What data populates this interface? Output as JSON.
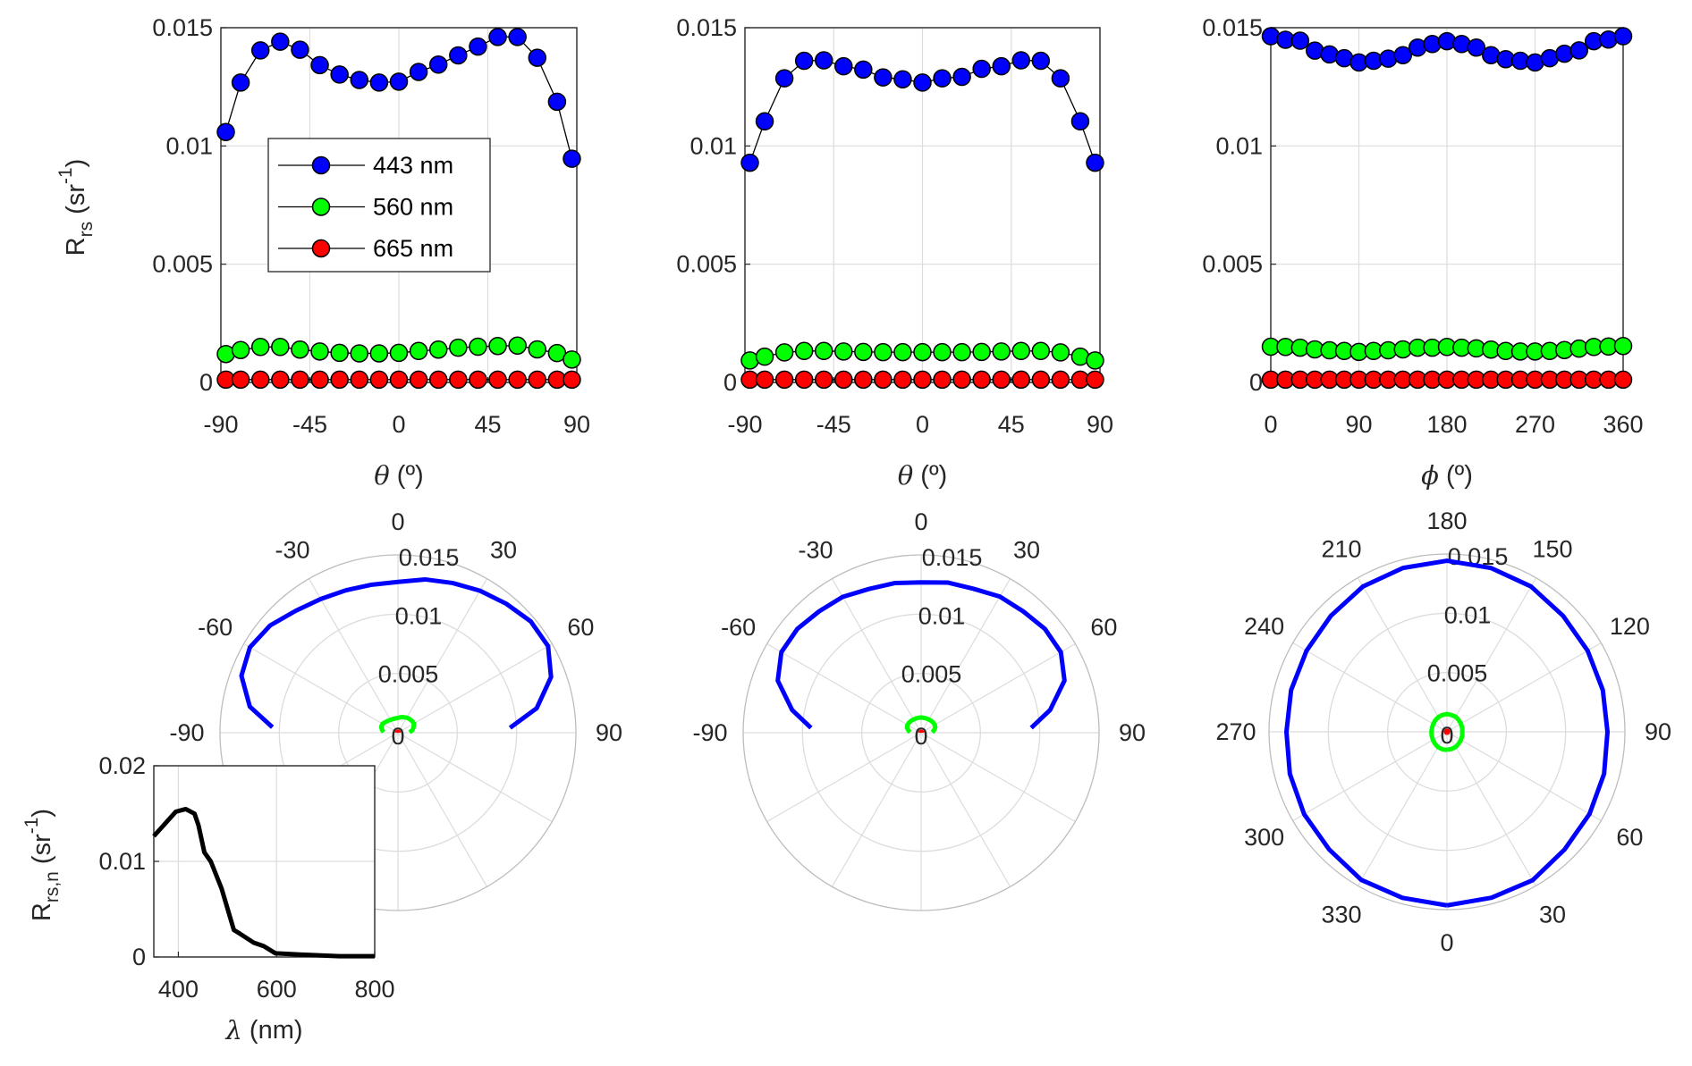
{
  "colors": {
    "443 nm": "#0000ff",
    "560 nm": "#00ff00",
    "665 nm": "#ff0000",
    "text": "#262626",
    "grid": "#dcdcdc"
  },
  "chart_data": [
    {
      "type": "line",
      "panel": "top-left",
      "xlabel": {
        "symbol": "θ",
        "unit": " (º)"
      },
      "ylabel": {
        "base": "R",
        "sub": "rs",
        "unit": " (sr",
        "sup": "-1",
        "close": ")"
      },
      "xlim": [
        -90,
        90
      ],
      "ylim": [
        0,
        0.015
      ],
      "xticks": [
        -90,
        -45,
        0,
        45,
        90
      ],
      "xtick_labels": [
        "-90",
        "-45",
        "0",
        "45",
        "90"
      ],
      "yticks": [
        0,
        0.005,
        0.01,
        0.015
      ],
      "ytick_labels": [
        "0",
        "0.005",
        "0.01",
        "0.015"
      ],
      "grid": true,
      "legend": {
        "placement": "center-left",
        "entries": [
          "443 nm",
          "560 nm",
          "665 nm"
        ]
      },
      "x": [
        -87.5,
        -80,
        -70,
        -60,
        -50,
        -40,
        -30,
        -20,
        -10,
        0,
        10,
        20,
        30,
        40,
        50,
        60,
        70,
        80,
        87.5
      ],
      "series": [
        {
          "name": "443 nm",
          "values": [
            0.01059,
            0.01268,
            0.01404,
            0.01441,
            0.01407,
            0.01342,
            0.01302,
            0.01279,
            0.01268,
            0.01272,
            0.01313,
            0.01344,
            0.01383,
            0.0142,
            0.01461,
            0.01461,
            0.01373,
            0.01187,
            0.00946
          ]
        },
        {
          "name": "560 nm",
          "values": [
            0.0012,
            0.00137,
            0.0015,
            0.0015,
            0.00139,
            0.00131,
            0.00125,
            0.00123,
            0.00123,
            0.00125,
            0.00133,
            0.00139,
            0.00147,
            0.00151,
            0.00154,
            0.00156,
            0.0014,
            0.00124,
            0.00097
          ]
        },
        {
          "name": "665 nm",
          "values": [
            0.00012,
            0.00012,
            0.00012,
            0.00012,
            0.00012,
            0.00012,
            0.00012,
            0.00012,
            0.00012,
            0.00012,
            0.00012,
            0.00012,
            0.00012,
            0.00012,
            0.00012,
            0.00012,
            0.00012,
            0.00012,
            0.00012
          ]
        }
      ]
    },
    {
      "type": "line",
      "panel": "top-middle",
      "xlabel": {
        "symbol": "θ",
        "unit": " (º)"
      },
      "xlim": [
        -90,
        90
      ],
      "ylim": [
        0,
        0.015
      ],
      "xticks": [
        -90,
        -45,
        0,
        45,
        90
      ],
      "xtick_labels": [
        "-90",
        "-45",
        "0",
        "45",
        "90"
      ],
      "yticks": [
        0,
        0.005,
        0.01,
        0.015
      ],
      "ytick_labels": [
        "0",
        "0.005",
        "0.01",
        "0.015"
      ],
      "grid": true,
      "x": [
        -87.5,
        -80,
        -70,
        -60,
        -50,
        -40,
        -30,
        -20,
        -10,
        0,
        10,
        20,
        30,
        40,
        50,
        60,
        70,
        80,
        87.5
      ],
      "series": [
        {
          "name": "443 nm",
          "values": [
            0.00929,
            0.01104,
            0.01286,
            0.0136,
            0.01362,
            0.01337,
            0.01323,
            0.0129,
            0.01282,
            0.01268,
            0.01286,
            0.01292,
            0.01326,
            0.01337,
            0.01362,
            0.0136,
            0.01286,
            0.01104,
            0.00929
          ]
        },
        {
          "name": "560 nm",
          "values": [
            0.00093,
            0.00109,
            0.00127,
            0.00133,
            0.00133,
            0.00131,
            0.00129,
            0.00128,
            0.00128,
            0.00128,
            0.00128,
            0.00128,
            0.00129,
            0.00131,
            0.00133,
            0.00133,
            0.00127,
            0.00109,
            0.00093
          ]
        },
        {
          "name": "665 nm",
          "values": [
            0.00012,
            0.00012,
            0.00012,
            0.00012,
            0.00012,
            0.00012,
            0.00012,
            0.00012,
            0.00012,
            0.00012,
            0.00012,
            0.00012,
            0.00012,
            0.00012,
            0.00012,
            0.00012,
            0.00012,
            0.00012,
            0.00012
          ]
        }
      ]
    },
    {
      "type": "line",
      "panel": "top-right",
      "xlabel": {
        "symbol": "ϕ",
        "unit": " (º)"
      },
      "xlim": [
        0,
        360
      ],
      "ylim": [
        0,
        0.015
      ],
      "xticks": [
        0,
        90,
        180,
        270,
        360
      ],
      "xtick_labels": [
        "0",
        "90",
        "180",
        "270",
        "360"
      ],
      "yticks": [
        0,
        0.005,
        0.01,
        0.015
      ],
      "ytick_labels": [
        "0",
        "0.005",
        "0.01",
        "0.015"
      ],
      "grid": true,
      "x": [
        0,
        15,
        30,
        45,
        60,
        75,
        90,
        105,
        120,
        135,
        150,
        165,
        180,
        195,
        210,
        225,
        240,
        255,
        270,
        285,
        300,
        315,
        330,
        345,
        360
      ],
      "series": [
        {
          "name": "443 nm",
          "values": [
            0.01464,
            0.01449,
            0.01445,
            0.01403,
            0.01387,
            0.01371,
            0.01353,
            0.0136,
            0.01369,
            0.01384,
            0.01416,
            0.01431,
            0.01443,
            0.01431,
            0.01416,
            0.01384,
            0.01367,
            0.0136,
            0.01353,
            0.01371,
            0.0139,
            0.01404,
            0.01443,
            0.0145,
            0.01464
          ]
        },
        {
          "name": "560 nm",
          "values": [
            0.00151,
            0.0015,
            0.00147,
            0.0014,
            0.00136,
            0.00133,
            0.00129,
            0.00133,
            0.00136,
            0.0014,
            0.00147,
            0.00147,
            0.0015,
            0.00147,
            0.00144,
            0.00139,
            0.00133,
            0.00131,
            0.00131,
            0.00133,
            0.00137,
            0.00143,
            0.0015,
            0.00152,
            0.00154
          ]
        },
        {
          "name": "665 nm",
          "values": [
            0.00012,
            0.00012,
            0.00012,
            0.00012,
            0.00012,
            0.00012,
            0.00012,
            0.00012,
            0.00012,
            0.00012,
            0.00012,
            0.00012,
            0.00012,
            0.00012,
            0.00012,
            0.00012,
            0.00012,
            0.00012,
            0.00012,
            0.00012,
            0.00012,
            0.00012,
            0.00012,
            0.00012,
            0.00012
          ]
        }
      ]
    },
    {
      "type": "polar",
      "panel": "bottom-left",
      "same_data_as_panel": "top-left",
      "theta_zero": "top",
      "theta_direction": "clockwise",
      "theta_tick_labels": [
        "-90",
        "-60",
        "-30",
        "0",
        "30",
        "60",
        "90"
      ],
      "theta_ticks": [
        -90,
        -60,
        -30,
        0,
        30,
        60,
        90
      ],
      "rlim": [
        0,
        0.015
      ],
      "rticks": [
        0,
        0.005,
        0.01,
        0.015
      ],
      "rtick_labels": [
        "0",
        "0.005",
        "0.01",
        "0.015"
      ]
    },
    {
      "type": "polar",
      "panel": "bottom-middle",
      "same_data_as_panel": "top-middle",
      "theta_zero": "top",
      "theta_direction": "clockwise",
      "theta_tick_labels": [
        "-90",
        "-60",
        "-30",
        "0",
        "30",
        "60",
        "90"
      ],
      "theta_ticks": [
        -90,
        -60,
        -30,
        0,
        30,
        60,
        90
      ],
      "rlim": [
        0,
        0.015
      ],
      "rticks": [
        0,
        0.005,
        0.01,
        0.015
      ],
      "rtick_labels": [
        "0",
        "0.005",
        "0.01",
        "0.015"
      ]
    },
    {
      "type": "polar",
      "panel": "bottom-right",
      "same_data_as_panel": "top-right",
      "theta_zero": "bottom",
      "theta_direction": "counterclockwise",
      "theta_tick_labels": [
        "0",
        "30",
        "60",
        "90",
        "120",
        "150",
        "180",
        "210",
        "240",
        "270",
        "300",
        "330"
      ],
      "theta_ticks": [
        0,
        30,
        60,
        90,
        120,
        150,
        180,
        210,
        240,
        270,
        300,
        330
      ],
      "rlim": [
        0,
        0.015
      ],
      "rticks": [
        0,
        0.005,
        0.01,
        0.015
      ],
      "rtick_labels": [
        "0",
        "0.005",
        "0.01",
        "0.015"
      ]
    },
    {
      "type": "line",
      "panel": "inset-bottom-left",
      "xlabel": {
        "symbol": "λ",
        "unit": " (nm)"
      },
      "ylabel": {
        "base": "R",
        "sub": "rs,n",
        "unit": " (sr",
        "sup": "-1",
        "close": ")"
      },
      "xlim": [
        350,
        800
      ],
      "ylim": [
        0,
        0.02
      ],
      "xticks": [
        400,
        600,
        800
      ],
      "xtick_labels": [
        "400",
        "600",
        "800"
      ],
      "yticks": [
        0,
        0.01,
        0.02
      ],
      "ytick_labels": [
        "0",
        "0.01",
        "0.02"
      ],
      "grid": true,
      "x": [
        350,
        395,
        415,
        433,
        441,
        453,
        466,
        488,
        513,
        525,
        553,
        574,
        598,
        647,
        728,
        800
      ],
      "series": [
        {
          "name": "spectrum",
          "values": [
            0.01264,
            0.0152,
            0.01547,
            0.01498,
            0.01377,
            0.01094,
            0.01,
            0.00717,
            0.00283,
            0.00245,
            0.00151,
            0.00113,
            0.00038,
            0.00026,
            8e-05,
            8e-05
          ]
        }
      ]
    }
  ]
}
